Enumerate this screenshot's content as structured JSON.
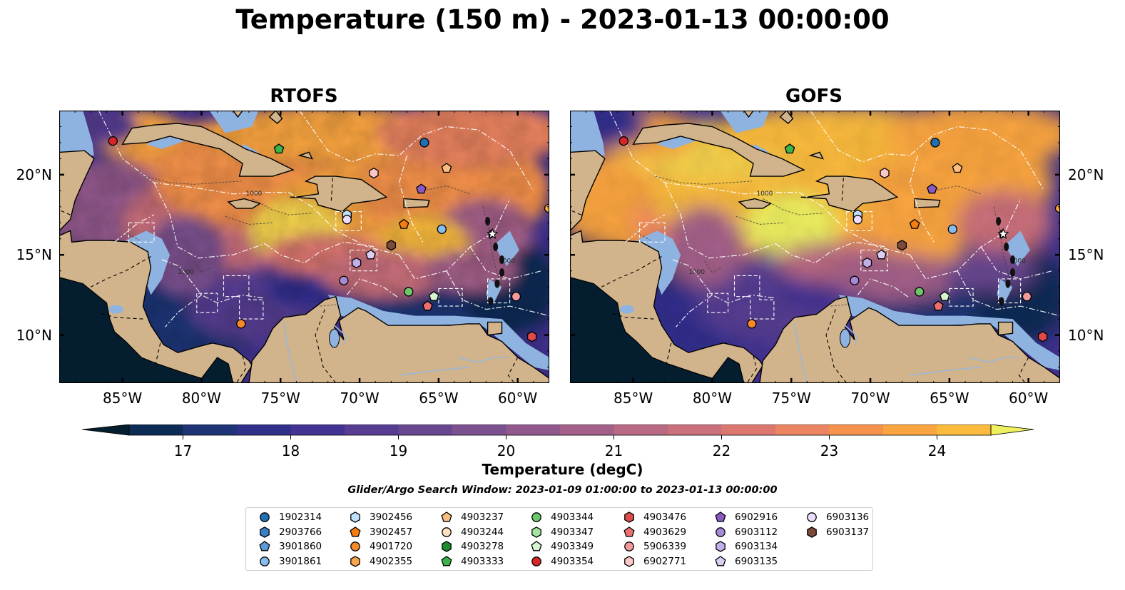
{
  "title": "Temperature (150 m) - 2023-01-13 00:00:00",
  "panels": [
    {
      "name": "RTOFS"
    },
    {
      "name": "GOFS"
    }
  ],
  "map": {
    "lon_range": [
      -89,
      -58
    ],
    "lat_range": [
      7,
      24
    ],
    "x_ticks": [
      {
        "lon": -85,
        "label": "85°W"
      },
      {
        "lon": -80,
        "label": "80°W"
      },
      {
        "lon": -75,
        "label": "75°W"
      },
      {
        "lon": -70,
        "label": "70°W"
      },
      {
        "lon": -65,
        "label": "65°W"
      },
      {
        "lon": -60,
        "label": "60°W"
      }
    ],
    "y_ticks": [
      {
        "lat": 20,
        "label": "20°N"
      },
      {
        "lat": 15,
        "label": "15°N"
      },
      {
        "lat": 10,
        "label": "10°N"
      }
    ],
    "land_color": "#d2b48c",
    "shelf_color": "#8fb3e0",
    "contour_label": "1000"
  },
  "colorbar": {
    "label": "Temperature (degC)",
    "min": 16.5,
    "max": 24.5,
    "step": 0.5,
    "ticks": [
      "17",
      "18",
      "19",
      "20",
      "21",
      "22",
      "23",
      "24"
    ],
    "colors": [
      "#041e2f",
      "#0d2c55",
      "#1e3476",
      "#302f8c",
      "#433393",
      "#563d92",
      "#694790",
      "#7c518f",
      "#91598b",
      "#a46089",
      "#b96983",
      "#ca707c",
      "#dc7770",
      "#eb8460",
      "#f6924b",
      "#faa53f",
      "#fbbb3d",
      "#f5d34d",
      "#eef060"
    ]
  },
  "search_window": "Glider/Argo Search Window: 2023-01-09 01:00:00 to 2023-01-13 00:00:00",
  "legend": [
    {
      "id": "1902314",
      "marker": "circle",
      "color": "#1f6fb4",
      "lon": -65.9,
      "lat": 22.0
    },
    {
      "id": "2903766",
      "marker": "hexagon",
      "color": "#3b7fc4"
    },
    {
      "id": "3901860",
      "marker": "pentagon",
      "color": "#5b9bd9"
    },
    {
      "id": "3901861",
      "marker": "circle",
      "color": "#86bdec",
      "lon": -64.8,
      "lat": 16.6
    },
    {
      "id": "3902456",
      "marker": "hexagon",
      "color": "#bfe0fa",
      "lon": -70.8,
      "lat": 17.5
    },
    {
      "id": "3902457",
      "marker": "pentagon",
      "color": "#f57c0e",
      "lon": -67.2,
      "lat": 16.9
    },
    {
      "id": "4901720",
      "marker": "circle",
      "color": "#f58a2b",
      "lon": -77.5,
      "lat": 10.7
    },
    {
      "id": "4902355",
      "marker": "hexagon",
      "color": "#fba34f"
    },
    {
      "id": "4903237",
      "marker": "pentagon",
      "color": "#fbbd7f",
      "lon": -64.5,
      "lat": 20.4
    },
    {
      "id": "4903244",
      "marker": "circle",
      "color": "#fde0bf"
    },
    {
      "id": "4903278",
      "marker": "hexagon",
      "color": "#1a8d2c"
    },
    {
      "id": "4903333",
      "marker": "pentagon",
      "color": "#3cb44b",
      "lon": -75.1,
      "lat": 21.6
    },
    {
      "id": "4903344",
      "marker": "circle",
      "color": "#6cc76a",
      "lon": -66.9,
      "lat": 12.7
    },
    {
      "id": "4903347",
      "marker": "hexagon",
      "color": "#a2e4a0"
    },
    {
      "id": "4903349",
      "marker": "pentagon",
      "color": "#d4f7cf",
      "lon": -65.3,
      "lat": 12.4
    },
    {
      "id": "4903354",
      "marker": "circle",
      "color": "#d62728",
      "lon": -85.6,
      "lat": 22.1
    },
    {
      "id": "4903476",
      "marker": "hexagon",
      "color": "#e04a4a",
      "lon": -59.1,
      "lat": 9.9
    },
    {
      "id": "4903629",
      "marker": "pentagon",
      "color": "#ee6f6f",
      "lon": -65.7,
      "lat": 11.8
    },
    {
      "id": "5906339",
      "marker": "circle",
      "color": "#f59a9a",
      "lon": -60.1,
      "lat": 12.4
    },
    {
      "id": "6902771",
      "marker": "hexagon",
      "color": "#fbc8c8",
      "lon": -69.1,
      "lat": 20.1
    },
    {
      "id": "6902916",
      "marker": "pentagon",
      "color": "#8a5ac2",
      "lon": -66.1,
      "lat": 19.1
    },
    {
      "id": "6903112",
      "marker": "circle",
      "color": "#a58ad6",
      "lon": -71.0,
      "lat": 13.4
    },
    {
      "id": "6903134",
      "marker": "hexagon",
      "color": "#c3afe8",
      "lon": -70.2,
      "lat": 14.5
    },
    {
      "id": "6903135",
      "marker": "pentagon",
      "color": "#dccdf5",
      "lon": -69.3,
      "lat": 15.0
    },
    {
      "id": "6903136",
      "marker": "circle",
      "color": "#ecdcfb",
      "lon": -70.8,
      "lat": 17.2
    },
    {
      "id": "6903137",
      "marker": "hexagon",
      "color": "#7a4a3a",
      "lon": -68.0,
      "lat": 15.6
    }
  ]
}
